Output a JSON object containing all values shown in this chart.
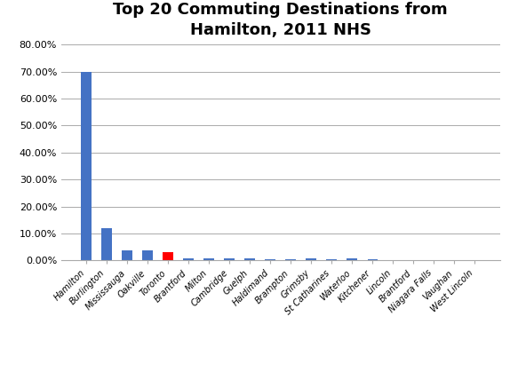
{
  "title": "Top 20 Commuting Destinations from\nHamilton, 2011 NHS",
  "categories": [
    "Hamilton",
    "Burlington",
    "Mississauga",
    "Oakville",
    "Toronto",
    "Brantford",
    "Milton",
    "Cambridge",
    "Guelph",
    "Haldimand",
    "Brampton",
    "Grimsby",
    "St Catharines",
    "Waterloo",
    "Kitchener",
    "Lincoln",
    "Brantford",
    "Niagara Falls",
    "Vaughan",
    "West Lincoln"
  ],
  "values": [
    0.698,
    0.119,
    0.038,
    0.037,
    0.032,
    0.009,
    0.009,
    0.009,
    0.006,
    0.005,
    0.005,
    0.006,
    0.005,
    0.006,
    0.003,
    0.002,
    0.002,
    0.001,
    0.001,
    0.001
  ],
  "colors": [
    "#4472C4",
    "#4472C4",
    "#4472C4",
    "#4472C4",
    "#FF0000",
    "#4472C4",
    "#4472C4",
    "#4472C4",
    "#4472C4",
    "#4472C4",
    "#4472C4",
    "#4472C4",
    "#4472C4",
    "#4472C4",
    "#4472C4",
    "#4472C4",
    "#4472C4",
    "#4472C4",
    "#4472C4",
    "#4472C4"
  ],
  "ylim": [
    0,
    0.8
  ],
  "yticks": [
    0.0,
    0.1,
    0.2,
    0.3,
    0.4,
    0.5,
    0.6,
    0.7,
    0.8
  ],
  "ytick_labels": [
    "0.00%",
    "10.00%",
    "20.00%",
    "30.00%",
    "40.00%",
    "50.00%",
    "60.00%",
    "70.00%",
    "80.00%"
  ],
  "title_fontsize": 13,
  "tick_fontsize": 8,
  "xtick_fontsize": 7,
  "background_color": "#FFFFFF",
  "grid_color": "#AAAAAA",
  "bar_width": 0.5
}
